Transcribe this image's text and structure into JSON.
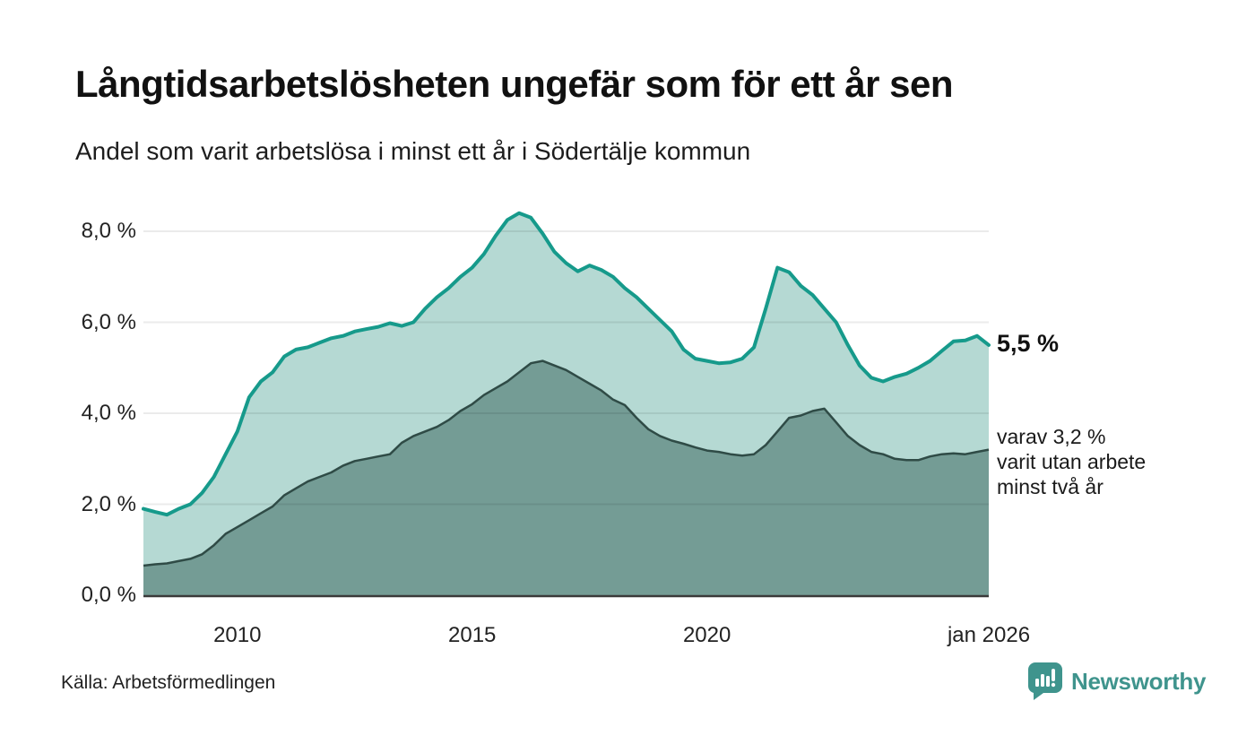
{
  "header": {
    "title": "Långtidsarbetslösheten ungefär som för ett år sen",
    "subtitle": "Andel som varit arbetslösa i minst ett år i Södertälje kommun"
  },
  "annotations": {
    "latest_primary": "5,5 %",
    "secondary": "varav 3,2 %\nvarit utan arbete\nminst två år"
  },
  "footer": {
    "source": "Källa: Arbetsförmedlingen",
    "logo_text": "Newsworthy"
  },
  "colors": {
    "series1_line": "#169a8b",
    "series1_fill": "#b5d9d3",
    "series2_line": "#2f4b46",
    "series2_fill": "#749c95",
    "axis_line": "#3a3a3a",
    "gridline": "rgba(0,0,0,0.08)",
    "logo_teal": "#3f948d",
    "text_dark": "#111111"
  },
  "chart_data": {
    "type": "area",
    "title": "Långtidsarbetslösheten ungefär som för ett år sen",
    "subtitle": "Andel som varit arbetslösa i minst ett år i Södertälje kommun",
    "xlabel": "",
    "ylabel": "",
    "grid": true,
    "legend": "none",
    "xlim": [
      2008,
      2026.0
    ],
    "ylim": [
      0,
      8.65
    ],
    "yticks": [
      {
        "value": 0,
        "label": "0,0 %"
      },
      {
        "value": 2,
        "label": "2,0 %"
      },
      {
        "value": 4,
        "label": "4,0 %"
      },
      {
        "value": 6,
        "label": "6,0 %"
      },
      {
        "value": 8,
        "label": "8,0 %"
      }
    ],
    "xticks": [
      {
        "value": 2010,
        "label": "2010"
      },
      {
        "value": 2015,
        "label": "2015"
      },
      {
        "value": 2020,
        "label": "2020"
      },
      {
        "value": 2026.0,
        "label": "jan 2026"
      }
    ],
    "x": [
      2008.0,
      2008.25,
      2008.5,
      2008.75,
      2009.0,
      2009.25,
      2009.5,
      2009.75,
      2010.0,
      2010.25,
      2010.5,
      2010.75,
      2011.0,
      2011.25,
      2011.5,
      2011.75,
      2012.0,
      2012.25,
      2012.5,
      2012.75,
      2013.0,
      2013.25,
      2013.5,
      2013.75,
      2014.0,
      2014.25,
      2014.5,
      2014.75,
      2015.0,
      2015.25,
      2015.5,
      2015.75,
      2016.0,
      2016.25,
      2016.5,
      2016.75,
      2017.0,
      2017.25,
      2017.5,
      2017.75,
      2018.0,
      2018.25,
      2018.5,
      2018.75,
      2019.0,
      2019.25,
      2019.5,
      2019.75,
      2020.0,
      2020.25,
      2020.5,
      2020.75,
      2021.0,
      2021.25,
      2021.5,
      2021.75,
      2022.0,
      2022.25,
      2022.5,
      2022.75,
      2023.0,
      2023.25,
      2023.5,
      2023.75,
      2024.0,
      2024.25,
      2024.5,
      2024.75,
      2025.0,
      2025.25,
      2025.5,
      2025.75,
      2026.0
    ],
    "series": [
      {
        "name": "arbetslösa minst ett år",
        "end_label": "5,5 %",
        "end_value": 5.5,
        "values": [
          1.9,
          1.83,
          1.77,
          1.9,
          2.0,
          2.25,
          2.6,
          3.1,
          3.6,
          4.35,
          4.7,
          4.9,
          5.25,
          5.4,
          5.45,
          5.55,
          5.65,
          5.7,
          5.8,
          5.85,
          5.9,
          5.98,
          5.92,
          6.0,
          6.3,
          6.55,
          6.75,
          7.0,
          7.2,
          7.5,
          7.9,
          8.25,
          8.4,
          8.3,
          7.95,
          7.55,
          7.3,
          7.12,
          7.25,
          7.15,
          7.0,
          6.75,
          6.55,
          6.3,
          6.05,
          5.8,
          5.4,
          5.2,
          5.15,
          5.1,
          5.12,
          5.2,
          5.45,
          6.3,
          7.2,
          7.1,
          6.8,
          6.6,
          6.3,
          6.0,
          5.5,
          5.05,
          4.78,
          4.7,
          4.8,
          4.87,
          5.0,
          5.15,
          5.37,
          5.58,
          5.6,
          5.7,
          5.5
        ]
      },
      {
        "name": "varit utan arbete minst två år",
        "end_label": "varav 3,2 % varit utan arbete minst två år",
        "end_value": 3.2,
        "values": [
          0.65,
          0.68,
          0.7,
          0.75,
          0.8,
          0.9,
          1.1,
          1.35,
          1.5,
          1.65,
          1.8,
          1.95,
          2.2,
          2.35,
          2.5,
          2.6,
          2.7,
          2.85,
          2.95,
          3.0,
          3.05,
          3.1,
          3.35,
          3.5,
          3.6,
          3.7,
          3.85,
          4.05,
          4.2,
          4.4,
          4.55,
          4.7,
          4.9,
          5.1,
          5.15,
          5.05,
          4.95,
          4.8,
          4.65,
          4.5,
          4.3,
          4.18,
          3.9,
          3.65,
          3.5,
          3.4,
          3.33,
          3.25,
          3.18,
          3.15,
          3.1,
          3.07,
          3.1,
          3.3,
          3.6,
          3.9,
          3.95,
          4.05,
          4.1,
          3.8,
          3.5,
          3.3,
          3.15,
          3.1,
          3.0,
          2.97,
          2.97,
          3.05,
          3.1,
          3.12,
          3.1,
          3.15,
          3.2
        ]
      }
    ]
  }
}
